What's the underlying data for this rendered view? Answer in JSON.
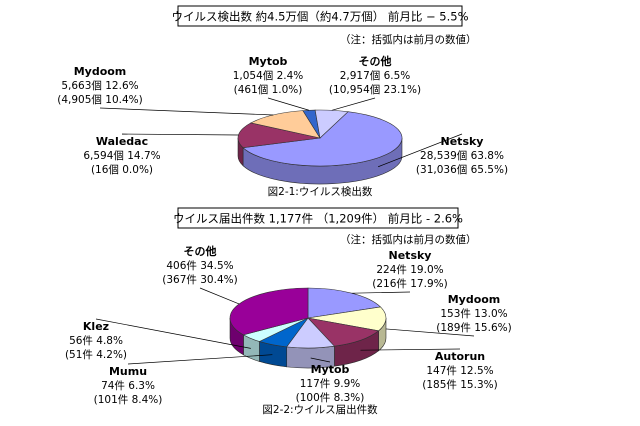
{
  "chart_data": [
    {
      "type": "pie",
      "title": "ウイルス検出数 約4.5万個（約4.7万個） 前月比 − 5.5%",
      "note": "（注：括弧内は前月の数値）",
      "caption": "図2-1:ウイルス検出数",
      "categories": [
        "Netsky",
        "Waledac",
        "Mydoom",
        "Mytob",
        "その他"
      ],
      "values": [
        63.8,
        14.7,
        12.6,
        2.4,
        6.5
      ],
      "value_labels": [
        "28,539個 63.8%",
        "6,594個 14.7%",
        "5,663個 12.6%",
        "1,054個 2.4%",
        "2,917個 6.5%"
      ],
      "previous_labels": [
        "(31,036個 65.5%)",
        "(16個 0.0%)",
        "(4,905個 10.4%)",
        "(461個 1.0%)",
        "(10,954個 23.1%)"
      ],
      "colors": [
        "#9999ff",
        "#993366",
        "#ffcc99",
        "#3366cc",
        "#ccccff"
      ]
    },
    {
      "type": "pie",
      "title": "ウイルス届出件数 1,177件 （1,209件） 前月比 - 2.6%",
      "note": "（注：括弧内は前月の数値）",
      "caption": "図2-2:ウイルス届出件数",
      "categories": [
        "Netsky",
        "Mydoom",
        "Autorun",
        "Mytob",
        "Mumu",
        "Klez",
        "その他"
      ],
      "values": [
        19.0,
        13.0,
        12.5,
        9.9,
        6.3,
        4.8,
        34.5
      ],
      "value_labels": [
        "224件 19.0%",
        "153件 13.0%",
        "147件 12.5%",
        "117件 9.9%",
        "74件 6.3%",
        "56件 4.8%",
        "406件 34.5%"
      ],
      "previous_labels": [
        "(216件 17.9%)",
        "(189件 15.6%)",
        "(185件 15.3%)",
        "(100件 8.3%)",
        "(101件 8.4%)",
        "(51件 4.2%)",
        "(367件 30.4%)"
      ],
      "colors": [
        "#9999ff",
        "#ffffcc",
        "#993366",
        "#ccccff",
        "#0066cc",
        "#ccffff",
        "#990099"
      ]
    }
  ]
}
